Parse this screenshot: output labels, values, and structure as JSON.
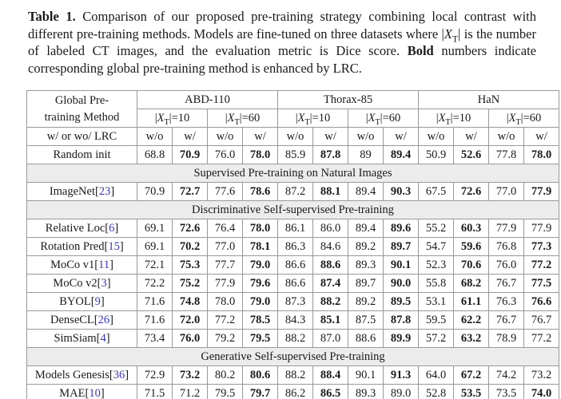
{
  "caption": {
    "segments": [
      {
        "t": "Table 1.",
        "b": true
      },
      {
        "t": " Comparison of our proposed pre-training strategy combining local contrast with different pre-training methods. Models are fine-tuned on three datasets where "
      },
      {
        "t": "|X_T|",
        "math": true
      },
      {
        "t": " is the number of labeled CT images, and the evaluation metric is Dice score. "
      },
      {
        "t": "Bold",
        "b": true
      },
      {
        "t": " numbers indicate corresponding global pre-training method is enhanced by LRC."
      }
    ]
  },
  "table": {
    "corner": {
      "line1": "Global Pre-",
      "line2": "training Method"
    },
    "lrc_row_label": "w/ or wo/ LRC",
    "datasets": [
      "ABD-110",
      "Thorax-85",
      "HaN"
    ],
    "xt_labels": [
      "|X_T|=10",
      "|X_T|=60"
    ],
    "lrc_labels": [
      "w/o",
      "w/"
    ],
    "rows": [
      {
        "type": "data",
        "method": "Random init",
        "cite": "",
        "values": [
          "68.8",
          "70.9",
          "76.0",
          "78.0",
          "85.9",
          "87.8",
          "89",
          "89.4",
          "50.9",
          "52.6",
          "77.8",
          "78.0"
        ],
        "bold": [
          0,
          1,
          0,
          1,
          0,
          1,
          0,
          1,
          0,
          1,
          0,
          1
        ]
      },
      {
        "type": "section",
        "label": "Supervised Pre-training on Natural Images"
      },
      {
        "type": "data",
        "method": "ImageNet",
        "cite": "23",
        "values": [
          "70.9",
          "72.7",
          "77.6",
          "78.6",
          "87.2",
          "88.1",
          "89.4",
          "90.3",
          "67.5",
          "72.6",
          "77.0",
          "77.9"
        ],
        "bold": [
          0,
          1,
          0,
          1,
          0,
          1,
          0,
          1,
          0,
          1,
          0,
          1
        ]
      },
      {
        "type": "section",
        "label": "Discriminative Self-supervised Pre-training"
      },
      {
        "type": "data",
        "method": "Relative Loc",
        "cite": "6",
        "values": [
          "69.1",
          "72.6",
          "76.4",
          "78.0",
          "86.1",
          "86.0",
          "89.4",
          "89.6",
          "55.2",
          "60.3",
          "77.9",
          "77.9"
        ],
        "bold": [
          0,
          1,
          0,
          1,
          0,
          0,
          0,
          1,
          0,
          1,
          0,
          0
        ]
      },
      {
        "type": "data",
        "method": "Rotation Pred",
        "cite": "15",
        "values": [
          "69.1",
          "70.2",
          "77.0",
          "78.1",
          "86.3",
          "84.6",
          "89.2",
          "89.7",
          "54.7",
          "59.6",
          "76.8",
          "77.3"
        ],
        "bold": [
          0,
          1,
          0,
          1,
          0,
          0,
          0,
          1,
          0,
          1,
          0,
          1
        ]
      },
      {
        "type": "data",
        "method": "MoCo v1",
        "cite": "11",
        "values": [
          "72.1",
          "75.3",
          "77.7",
          "79.0",
          "86.6",
          "88.6",
          "89.3",
          "90.1",
          "52.3",
          "70.6",
          "76.0",
          "77.2"
        ],
        "bold": [
          0,
          1,
          0,
          1,
          0,
          1,
          0,
          1,
          0,
          1,
          0,
          1
        ]
      },
      {
        "type": "data",
        "method": "MoCo v2",
        "cite": "3",
        "values": [
          "72.2",
          "75.2",
          "77.9",
          "79.6",
          "86.6",
          "87.4",
          "89.7",
          "90.0",
          "55.8",
          "68.2",
          "76.7",
          "77.5"
        ],
        "bold": [
          0,
          1,
          0,
          1,
          0,
          1,
          0,
          1,
          0,
          1,
          0,
          1
        ]
      },
      {
        "type": "data",
        "method": "BYOL",
        "cite": "9",
        "values": [
          "71.6",
          "74.8",
          "78.0",
          "79.0",
          "87.3",
          "88.2",
          "89.2",
          "89.5",
          "53.1",
          "61.1",
          "76.3",
          "76.6"
        ],
        "bold": [
          0,
          1,
          0,
          1,
          0,
          1,
          0,
          1,
          0,
          1,
          0,
          1
        ]
      },
      {
        "type": "data",
        "method": "DenseCL",
        "cite": "26",
        "values": [
          "71.6",
          "72.0",
          "77.2",
          "78.5",
          "84.3",
          "85.1",
          "87.5",
          "87.8",
          "59.5",
          "62.2",
          "76.7",
          "76.7"
        ],
        "bold": [
          0,
          1,
          0,
          1,
          0,
          1,
          0,
          1,
          0,
          1,
          0,
          0
        ]
      },
      {
        "type": "data",
        "method": "SimSiam",
        "cite": "4",
        "values": [
          "73.4",
          "76.0",
          "79.2",
          "79.5",
          "88.2",
          "87.0",
          "88.6",
          "89.9",
          "57.2",
          "63.2",
          "78.9",
          "77.2"
        ],
        "bold": [
          0,
          1,
          0,
          1,
          0,
          0,
          0,
          1,
          0,
          1,
          0,
          0
        ]
      },
      {
        "type": "section",
        "label": "Generative Self-supervised Pre-training"
      },
      {
        "type": "data",
        "method": "Models Genesis",
        "cite": "36",
        "values": [
          "72.9",
          "73.2",
          "80.2",
          "80.6",
          "88.2",
          "88.4",
          "90.1",
          "91.3",
          "64.0",
          "67.2",
          "74.2",
          "73.2"
        ],
        "bold": [
          0,
          1,
          0,
          1,
          0,
          1,
          0,
          1,
          0,
          1,
          0,
          0
        ]
      },
      {
        "type": "data",
        "method": "MAE",
        "cite": "10",
        "values": [
          "71.5",
          "71.2",
          "79.5",
          "79.7",
          "86.2",
          "86.5",
          "89.3",
          "89.0",
          "52.8",
          "53.5",
          "73.5",
          "74.0"
        ],
        "bold": [
          0,
          0,
          0,
          1,
          0,
          1,
          0,
          0,
          0,
          1,
          0,
          1
        ]
      }
    ]
  },
  "colors": {
    "citation_blue": "#3535cd",
    "section_bg": "#ececec",
    "table_border": "#999999",
    "text": "#1a1a1a"
  }
}
